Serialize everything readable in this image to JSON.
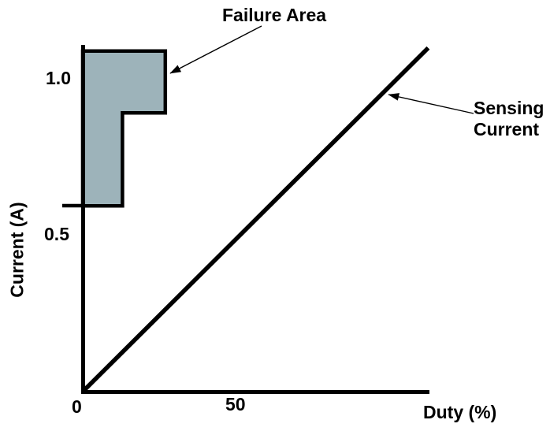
{
  "colors": {
    "background": "#ffffff",
    "line": "#000000",
    "text": "#000000",
    "failure_fill": "#9DB3BA"
  },
  "labels": {
    "failure_area": "Failure Area",
    "sensing_current": "Sensing Current",
    "x_axis": "Duty (%)",
    "y_axis": "Current (A)"
  },
  "ticks": {
    "x": [
      "0",
      "50"
    ],
    "y": [
      "0.5",
      "1.0"
    ]
  },
  "chart_data": {
    "type": "line",
    "title": "",
    "xlabel": "Duty (%)",
    "ylabel": "Current (A)",
    "xlim": [
      0,
      113
    ],
    "ylim": [
      0,
      1.12
    ],
    "x_ticks": [
      0,
      50
    ],
    "y_ticks": [
      0.5,
      1.0
    ],
    "grid": false,
    "legend": false,
    "series": [
      {
        "name": "Sensing Current",
        "type": "line",
        "x": [
          0,
          113
        ],
        "y": [
          0,
          1.11
        ],
        "comment": "straight line from origin, roughly 1 A at 100% duty"
      },
      {
        "name": "Failure Area",
        "type": "polygon",
        "points": [
          [
            0,
            1.1
          ],
          [
            27,
            1.1
          ],
          [
            27,
            0.9
          ],
          [
            13,
            0.9
          ],
          [
            13,
            0.6
          ],
          [
            0,
            0.6
          ]
        ],
        "fill": "#9DB3BA",
        "comment": "shaded step-shaped region hugging the y-axis between 0.6 A and 1.1 A"
      }
    ],
    "annotations": [
      {
        "text": "Failure Area",
        "points_to": "top-right edge of shaded region"
      },
      {
        "text": "Sensing Current",
        "points_to": "upper part of diagonal line"
      }
    ]
  }
}
